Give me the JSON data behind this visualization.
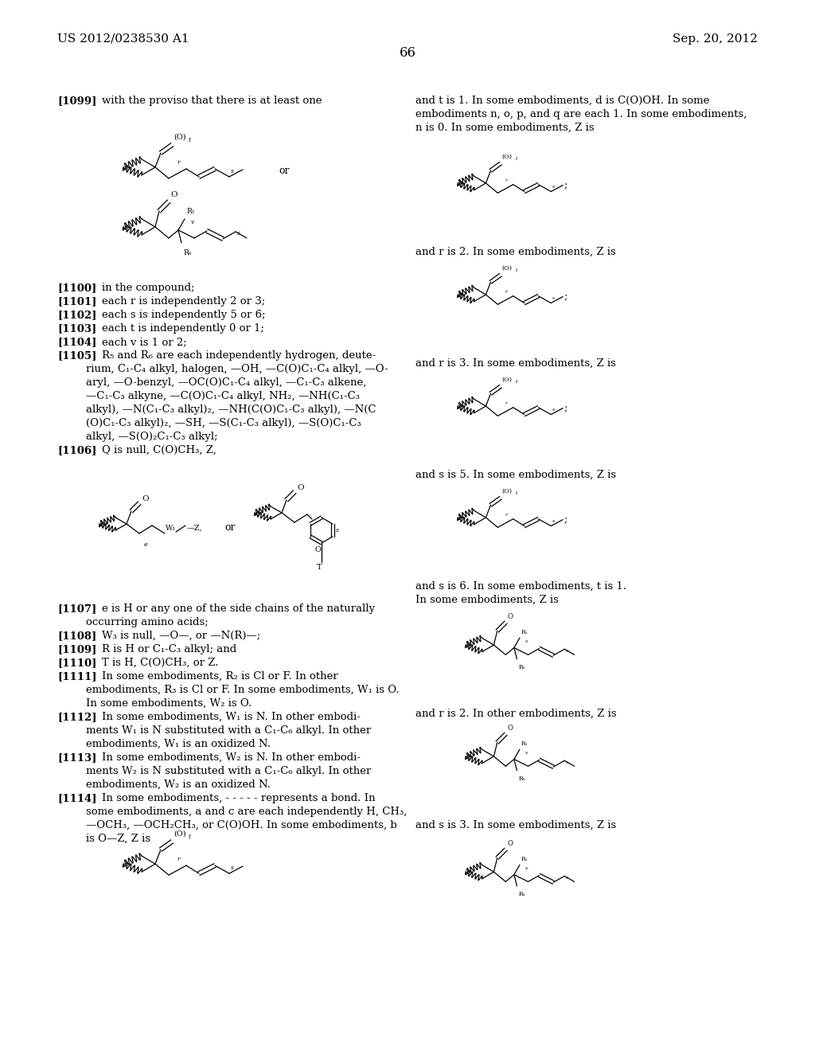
{
  "background": "#ffffff",
  "header_left": "US 2012/0238530 A1",
  "header_right": "Sep. 20, 2012",
  "page_number": "66"
}
